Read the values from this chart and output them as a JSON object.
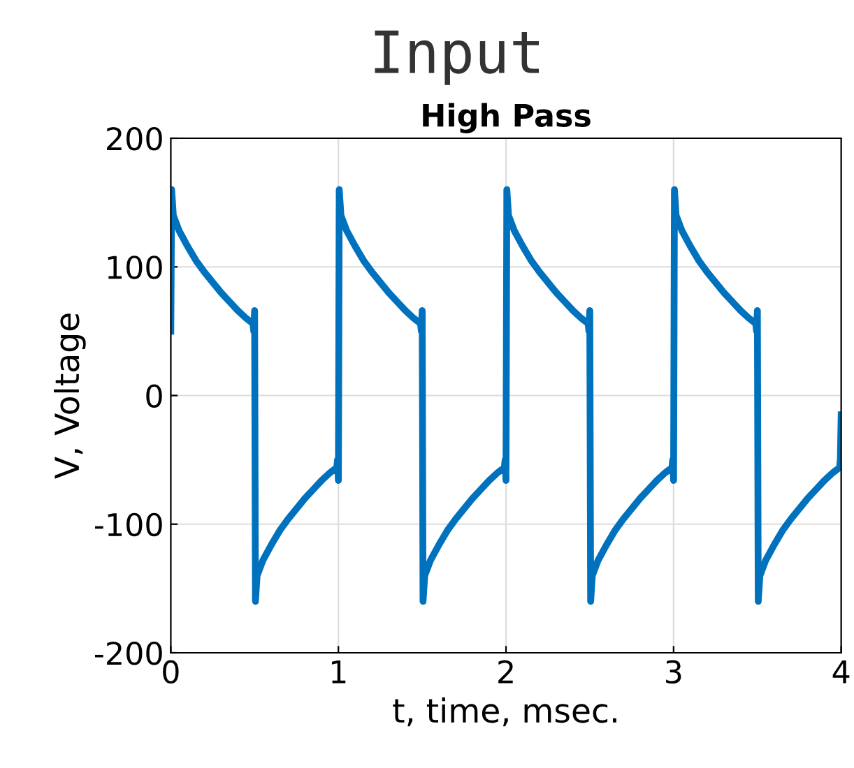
{
  "chart_data": {
    "type": "line",
    "title": "Input",
    "subtitle": "High Pass",
    "xlabel": "t, time, msec.",
    "ylabel": "V, Voltage",
    "x": [
      0,
      0.005,
      0.015,
      0.05,
      0.1,
      0.15,
      0.2,
      0.25,
      0.3,
      0.35,
      0.4,
      0.45,
      0.49,
      0.495,
      0.5,
      0.505,
      0.515,
      0.55,
      0.6,
      0.65,
      0.7,
      0.75,
      0.8,
      0.85,
      0.9,
      0.95,
      0.99,
      0.995,
      1.0,
      1.005,
      1.015,
      1.05,
      1.1,
      1.15,
      1.2,
      1.25,
      1.3,
      1.35,
      1.4,
      1.45,
      1.49,
      1.495,
      1.5,
      1.505,
      1.515,
      1.55,
      1.6,
      1.65,
      1.7,
      1.75,
      1.8,
      1.85,
      1.9,
      1.95,
      1.99,
      1.995,
      2.0,
      2.005,
      2.015,
      2.05,
      2.1,
      2.15,
      2.2,
      2.25,
      2.3,
      2.35,
      2.4,
      2.45,
      2.49,
      2.495,
      2.5,
      2.505,
      2.515,
      2.55,
      2.6,
      2.65,
      2.7,
      2.75,
      2.8,
      2.85,
      2.9,
      2.95,
      2.99,
      2.995,
      3.0,
      3.005,
      3.015,
      3.05,
      3.1,
      3.15,
      3.2,
      3.25,
      3.3,
      3.35,
      3.4,
      3.45,
      3.49,
      3.495,
      3.5,
      3.505,
      3.515,
      3.55,
      3.6,
      3.65,
      3.7,
      3.75,
      3.8,
      3.85,
      3.9,
      3.95,
      3.99,
      3.995,
      4.0
    ],
    "series": [
      {
        "color": "#0072bd",
        "values": [
          50,
          160,
          140,
          128,
          116,
          105,
          96,
          88,
          80,
          73,
          66,
          60,
          56,
          50,
          66,
          -160,
          -140,
          -128,
          -116,
          -105,
          -96,
          -88,
          -80,
          -73,
          -66,
          -60,
          -56,
          -50,
          -66,
          160,
          140,
          128,
          116,
          105,
          96,
          88,
          80,
          73,
          66,
          60,
          56,
          50,
          66,
          -160,
          -140,
          -128,
          -116,
          -105,
          -96,
          -88,
          -80,
          -73,
          -66,
          -60,
          -56,
          -50,
          -66,
          160,
          140,
          128,
          116,
          105,
          96,
          88,
          80,
          73,
          66,
          60,
          56,
          50,
          66,
          -160,
          -140,
          -128,
          -116,
          -105,
          -96,
          -88,
          -80,
          -73,
          -66,
          -60,
          -56,
          -50,
          -66,
          160,
          140,
          128,
          116,
          105,
          96,
          88,
          80,
          73,
          66,
          60,
          56,
          50,
          66,
          -160,
          -140,
          -128,
          -116,
          -105,
          -96,
          -88,
          -80,
          -73,
          -66,
          -60,
          -56,
          -50,
          -15
        ]
      }
    ],
    "xlim": [
      0,
      4
    ],
    "xticks": [
      0,
      1,
      2,
      3,
      4
    ],
    "ylim": [
      -200,
      200
    ],
    "yticks": [
      -200,
      -100,
      0,
      100,
      200
    ],
    "grid": true,
    "legend": false
  }
}
